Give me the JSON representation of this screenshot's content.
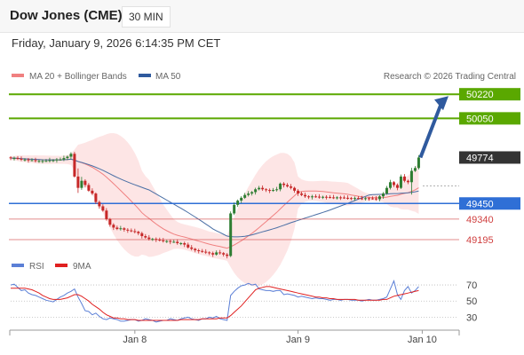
{
  "header": {
    "title": "Dow Jones (CME)",
    "interval": "30 MIN"
  },
  "timestamp": "Friday, January 9, 2026 6:14:35 PM CET",
  "legend": {
    "ma20_bb": "MA 20 + Bollinger Bands",
    "ma50": "MA 50",
    "rsi": "RSI",
    "rsi_ma": "9MA"
  },
  "credit": "Research © 2026 Trading Central",
  "colors": {
    "up": "#2e7d32",
    "down": "#c62828",
    "band": "#fde0e0",
    "ma20": "#f08080",
    "ma50": "#4a6fa5",
    "resistance": "#5aa800",
    "support": "#2f6fd6",
    "target": "#d04040",
    "last": "#333333",
    "rsi": "#5b7fd6",
    "rsi_ma": "#e02020"
  },
  "chart_data": {
    "type": "candlestick",
    "x_ticks": [
      "Jan 8",
      "Jan 9",
      "Jan 10"
    ],
    "price_ylim": [
      49070,
      50290
    ],
    "levels": [
      {
        "label": "50220",
        "value": 50220,
        "kind": "resistance"
      },
      {
        "label": "50050",
        "value": 50050,
        "kind": "resistance"
      },
      {
        "label": "49774",
        "value": 49774,
        "kind": "last"
      },
      {
        "label": "49450",
        "value": 49450,
        "kind": "support"
      },
      {
        "label": "49340",
        "value": 49340,
        "kind": "target"
      },
      {
        "label": "49195",
        "value": 49195,
        "kind": "target"
      }
    ],
    "close": [
      49770,
      49770,
      49765,
      49760,
      49760,
      49755,
      49755,
      49750,
      49750,
      49750,
      49750,
      49755,
      49755,
      49760,
      49760,
      49770,
      49780,
      49800,
      49640,
      49560,
      49610,
      49580,
      49540,
      49520,
      49460,
      49430,
      49400,
      49340,
      49300,
      49280,
      49270,
      49275,
      49265,
      49260,
      49255,
      49250,
      49240,
      49220,
      49210,
      49200,
      49200,
      49195,
      49190,
      49185,
      49185,
      49180,
      49180,
      49170,
      49170,
      49160,
      49140,
      49130,
      49120,
      49115,
      49110,
      49105,
      49100,
      49090,
      49105,
      49100,
      49090,
      49080,
      49380,
      49440,
      49470,
      49490,
      49510,
      49520,
      49530,
      49550,
      49560,
      49550,
      49545,
      49540,
      49545,
      49550,
      49590,
      49580,
      49570,
      49560,
      49540,
      49520,
      49510,
      49500,
      49495,
      49500,
      49498,
      49495,
      49497,
      49495,
      49493,
      49492,
      49493,
      49492,
      49490,
      49488,
      49487,
      49488,
      49486,
      49485,
      49487,
      49486,
      49485,
      49480,
      49500,
      49520,
      49560,
      49600,
      49580,
      49560,
      49640,
      49610,
      49600,
      49680,
      49700,
      49774
    ],
    "rsi_ylim": [
      15,
      80
    ],
    "rsi_levels": [
      70,
      50,
      30
    ],
    "rsi": [
      70,
      71,
      67,
      63,
      64,
      60,
      58,
      57,
      55,
      53,
      51,
      50,
      49,
      52,
      55,
      57,
      60,
      62,
      65,
      55,
      47,
      38,
      37,
      33,
      35,
      31,
      28,
      27,
      29,
      28,
      27,
      25,
      25,
      26,
      27,
      27,
      25,
      26,
      28,
      27,
      26,
      24,
      25,
      26,
      26,
      28,
      27,
      26,
      28,
      29,
      30,
      28,
      27,
      26,
      28,
      28,
      30,
      29,
      31,
      28,
      27,
      26,
      57,
      62,
      66,
      69,
      70,
      72,
      70,
      71,
      65,
      64,
      63,
      63,
      62,
      63,
      63,
      58,
      59,
      58,
      57,
      55,
      56,
      55,
      54,
      53,
      54,
      53,
      53,
      52,
      51,
      52,
      52,
      51,
      52,
      52,
      51,
      51,
      51,
      50,
      51,
      52,
      51,
      51,
      52,
      53,
      55,
      65,
      75,
      58,
      52,
      63,
      68,
      60,
      63,
      68
    ],
    "rsi_ma": [
      66,
      66,
      66,
      66,
      66,
      65,
      64,
      62,
      60,
      57,
      55,
      53,
      52,
      52,
      52,
      53,
      54,
      56,
      58,
      58,
      56,
      53,
      50,
      46,
      43,
      40,
      36,
      33,
      31,
      29,
      29,
      28,
      28,
      27,
      27,
      27,
      26,
      26,
      26,
      26,
      26,
      26,
      26,
      26,
      26,
      26,
      26,
      26,
      27,
      27,
      27,
      27,
      27,
      27,
      28,
      28,
      28,
      28,
      28,
      29,
      29,
      29,
      32,
      36,
      40,
      44,
      49,
      54,
      59,
      64,
      66,
      67,
      68,
      68,
      67,
      66,
      65,
      64,
      63,
      62,
      61,
      60,
      59,
      58,
      57,
      56,
      55,
      55,
      54,
      54,
      53,
      53,
      52,
      52,
      52,
      52,
      52,
      52,
      51,
      51,
      51,
      51,
      51,
      51,
      51,
      52,
      52,
      54,
      56,
      57,
      58,
      59,
      60,
      61,
      62,
      63
    ]
  }
}
